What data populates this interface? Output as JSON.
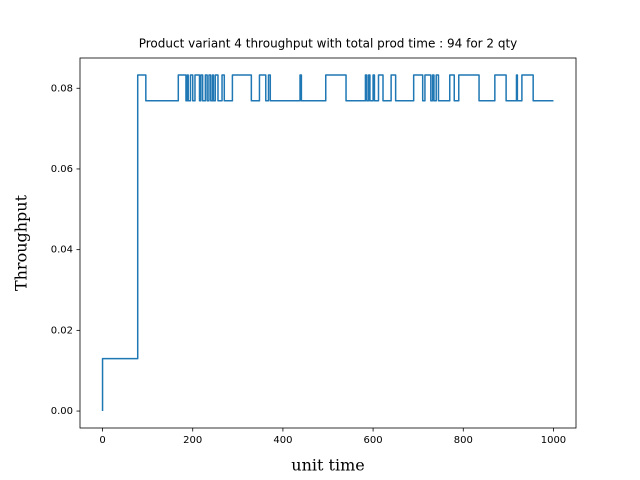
{
  "chart_data": {
    "type": "line",
    "title": "Product variant 4 throughput with total prod time : 94 for 2 qty",
    "xlabel": "unit time",
    "ylabel": "Throughput",
    "color": "#1f77b4",
    "label_color": "#8b0000",
    "x": [
      0,
      0,
      78,
      78,
      96,
      96,
      168,
      168,
      185,
      185,
      188,
      188,
      190,
      190,
      195,
      195,
      200,
      200,
      205,
      205,
      215,
      215,
      218,
      218,
      222,
      222,
      228,
      228,
      232,
      232,
      236,
      236,
      240,
      240,
      244,
      244,
      246,
      246,
      250,
      250,
      256,
      256,
      265,
      265,
      270,
      270,
      288,
      288,
      330,
      330,
      348,
      348,
      362,
      362,
      368,
      368,
      372,
      372,
      438,
      438,
      441,
      441,
      495,
      495,
      540,
      540,
      583,
      583,
      586,
      586,
      590,
      590,
      593,
      593,
      600,
      600,
      603,
      603,
      612,
      612,
      622,
      622,
      640,
      640,
      650,
      650,
      690,
      690,
      710,
      710,
      715,
      715,
      728,
      728,
      732,
      732,
      735,
      735,
      740,
      740,
      745,
      745,
      770,
      770,
      780,
      780,
      790,
      790,
      835,
      835,
      870,
      870,
      895,
      895,
      918,
      918,
      920,
      920,
      930,
      930,
      955,
      955,
      1000
    ],
    "values": [
      0,
      0.013,
      0.013,
      0.0833,
      0.0833,
      0.0769,
      0.0769,
      0.0833,
      0.0833,
      0.0769,
      0.0769,
      0.0833,
      0.0833,
      0.0769,
      0.0769,
      0.0833,
      0.0833,
      0.0769,
      0.0769,
      0.0833,
      0.0833,
      0.0769,
      0.0769,
      0.0833,
      0.0833,
      0.0769,
      0.0769,
      0.0833,
      0.0833,
      0.0769,
      0.0769,
      0.0833,
      0.0833,
      0.0769,
      0.0769,
      0.0833,
      0.0833,
      0.0769,
      0.0769,
      0.0833,
      0.0833,
      0.0769,
      0.0769,
      0.0833,
      0.0833,
      0.0769,
      0.0769,
      0.0833,
      0.0833,
      0.0769,
      0.0769,
      0.0833,
      0.0833,
      0.0769,
      0.0769,
      0.0833,
      0.0833,
      0.0769,
      0.0769,
      0.0833,
      0.0833,
      0.0769,
      0.0769,
      0.0833,
      0.0833,
      0.0769,
      0.0769,
      0.0833,
      0.0833,
      0.0769,
      0.0769,
      0.0833,
      0.0833,
      0.0769,
      0.0769,
      0.0833,
      0.0833,
      0.0769,
      0.0769,
      0.0833,
      0.0833,
      0.0769,
      0.0769,
      0.0833,
      0.0833,
      0.0769,
      0.0769,
      0.0833,
      0.0833,
      0.0769,
      0.0769,
      0.0833,
      0.0833,
      0.0769,
      0.0769,
      0.0833,
      0.0833,
      0.0769,
      0.0769,
      0.0833,
      0.0833,
      0.0769,
      0.0769,
      0.0833,
      0.0833,
      0.0769,
      0.0769,
      0.0833,
      0.0833,
      0.0769,
      0.0769,
      0.0833,
      0.0833,
      0.0769,
      0.0769,
      0.0833,
      0.0833,
      0.0769,
      0.0769,
      0.0833,
      0.0833,
      0.0769,
      0.0769
    ],
    "xlim": [
      -50,
      1050
    ],
    "ylim": [
      -0.0042,
      0.0875
    ],
    "xticks": [
      0,
      200,
      400,
      600,
      800,
      1000
    ],
    "yticks": [
      {
        "value": 0,
        "label": "0.00"
      },
      {
        "value": 0.02,
        "label": "0.02"
      },
      {
        "value": 0.04,
        "label": "0.04"
      },
      {
        "value": 0.06,
        "label": "0.06"
      },
      {
        "value": 0.08,
        "label": "0.08"
      }
    ]
  }
}
